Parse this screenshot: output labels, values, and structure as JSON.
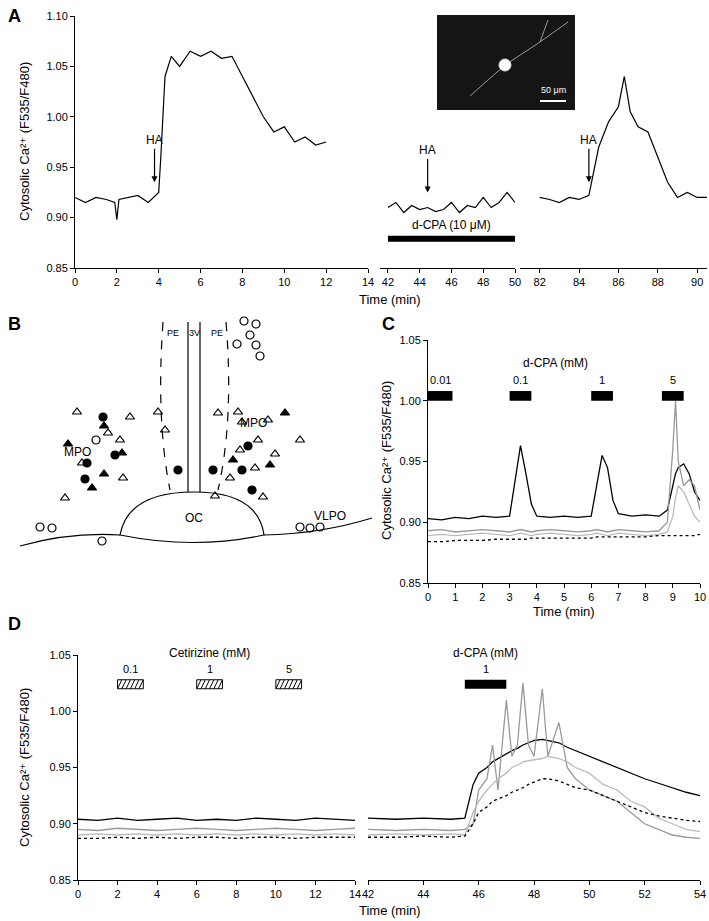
{
  "chart_data": [
    {
      "panel": "A",
      "type": "line",
      "xlabel": "Time (min)",
      "ylabel": "Cytosolic Ca²⁺ (F535/F480)",
      "ylim": [
        0.85,
        1.1
      ],
      "yticks": [
        0.85,
        {
          "value": 0.9,
          "label": "0.90"
        },
        0.95,
        {
          "value": 1,
          "label": "1.00"
        },
        1.05,
        {
          "value": 1.1,
          "label": "1.10"
        }
      ],
      "color": "#000000",
      "segments": [
        {
          "xlim": [
            0,
            14
          ],
          "xticks": [
            0,
            2,
            4,
            6,
            8,
            10,
            12,
            14
          ],
          "x": [
            0,
            0.5,
            1,
            1.5,
            1.9,
            2,
            2.1,
            2.5,
            3,
            3.5,
            4,
            4.1,
            4.3,
            4.6,
            5,
            5.5,
            6,
            6.5,
            7,
            7.5,
            8,
            8.5,
            9,
            9.5,
            10,
            10.5,
            11,
            11.5,
            12
          ],
          "values": [
            0.92,
            0.915,
            0.92,
            0.918,
            0.915,
            0.898,
            0.918,
            0.92,
            0.922,
            0.915,
            0.925,
            0.96,
            1.04,
            1.06,
            1.05,
            1.065,
            1.06,
            1.065,
            1.058,
            1.06,
            1.04,
            1.02,
            1.0,
            0.985,
            0.99,
            0.975,
            0.98,
            0.972,
            0.975
          ]
        },
        {
          "xlim": [
            41.5,
            50
          ],
          "xticks": [
            42,
            44,
            46,
            48,
            50
          ],
          "x": [
            42,
            42.5,
            43,
            43.5,
            44,
            44.5,
            45,
            45.5,
            46,
            46.5,
            47,
            47.5,
            48,
            48.5,
            49,
            49.5,
            50
          ],
          "values": [
            0.91,
            0.915,
            0.905,
            0.912,
            0.908,
            0.91,
            0.906,
            0.908,
            0.915,
            0.905,
            0.912,
            0.91,
            0.92,
            0.91,
            0.915,
            0.925,
            0.915
          ]
        },
        {
          "xlim": [
            81,
            90.5
          ],
          "xticks": [
            82,
            84,
            86,
            88,
            90
          ],
          "x": [
            82,
            82.5,
            83,
            83.5,
            84,
            84.5,
            85,
            85.5,
            86,
            86.3,
            86.6,
            87,
            87.5,
            88,
            88.5,
            89,
            89.5,
            90,
            90.5
          ],
          "values": [
            0.92,
            0.918,
            0.915,
            0.92,
            0.918,
            0.922,
            0.97,
            0.995,
            1.01,
            1.04,
            1.005,
            0.99,
            0.985,
            0.96,
            0.935,
            0.92,
            0.925,
            0.92,
            0.92
          ]
        }
      ],
      "annotations": [
        {
          "text": "HA",
          "x": 3.8,
          "y": 0.935
        },
        {
          "text": "HA",
          "x": 44.5,
          "y": 0.925
        },
        {
          "text": "HA",
          "x": 84.5,
          "y": 0.935
        }
      ],
      "drug_bars": [
        {
          "label": "d-CPA (10 μM)",
          "x": [
            42,
            50
          ]
        }
      ],
      "inset": {
        "label": "50 μm"
      }
    },
    {
      "panel": "B",
      "type": "scatter",
      "xlim": [
        15,
        375
      ],
      "ylim": [
        590,
        310
      ],
      "tick_labels": false,
      "series": [
        {
          "marker": "triangle-open",
          "color": "#000000",
          "x": [
            77,
            108,
            82,
            123,
            65,
            130,
            158,
            165,
            120,
            218,
            238,
            242,
            268,
            258,
            240,
            255,
            275,
            300,
            230,
            263,
            215
          ],
          "y": [
            412,
            433,
            463,
            478,
            498,
            417,
            412,
            430,
            440,
            413,
            412,
            422,
            420,
            440,
            450,
            468,
            454,
            440,
            478,
            497,
            496
          ]
        },
        {
          "marker": "triangle",
          "color": "#000000",
          "x": [
            104,
            68,
            104,
            92,
            122,
            285,
            233,
            270
          ],
          "y": [
            426,
            444,
            474,
            488,
            453,
            413,
            460,
            465
          ]
        },
        {
          "marker": "circle",
          "color": "#000000",
          "x": [
            103,
            115,
            87,
            85,
            178,
            213,
            248,
            242,
            252
          ],
          "y": [
            417,
            455,
            463,
            479,
            470,
            470,
            446,
            470,
            490
          ]
        },
        {
          "marker": "circle-open",
          "color": "#000000",
          "x": [
            244,
            256,
            250,
            237,
            256,
            260,
            40,
            52,
            102,
            300,
            310,
            320,
            96
          ],
          "y": [
            321,
            324,
            335,
            344,
            345,
            356,
            527,
            528,
            541,
            527,
            528,
            527,
            440
          ]
        }
      ],
      "labels": [
        "PE",
        "3V",
        "PE",
        "MPO",
        "MPO",
        "OC",
        "VLPO"
      ]
    },
    {
      "panel": "C",
      "type": "line",
      "xlabel": "Time (min)",
      "ylabel": "Cytosolic Ca²⁺ (F535/F480)",
      "xlim": [
        0,
        10
      ],
      "xticks": [
        0,
        1,
        2,
        3,
        4,
        5,
        6,
        7,
        8,
        9,
        10
      ],
      "ylim": [
        0.85,
        1.05
      ],
      "yticks": [
        0.85,
        {
          "value": 0.9,
          "label": "0.90"
        },
        0.95,
        {
          "value": 1,
          "label": "1.00"
        },
        1.05
      ],
      "x": [
        0,
        0.5,
        1,
        1.5,
        2,
        2.5,
        3,
        3.2,
        3.4,
        3.6,
        3.8,
        4,
        4.5,
        5,
        5.5,
        6,
        6.2,
        6.4,
        6.6,
        6.8,
        7,
        7.5,
        8,
        8.5,
        8.8,
        9,
        9.1,
        9.2,
        9.4,
        9.6,
        9.8,
        10
      ],
      "series": [
        {
          "color": "#000000",
          "line_style": "solid",
          "values": [
            0.903,
            0.902,
            0.904,
            0.903,
            0.905,
            0.904,
            0.905,
            0.935,
            0.963,
            0.94,
            0.915,
            0.905,
            0.904,
            0.905,
            0.904,
            0.905,
            0.93,
            0.955,
            0.945,
            0.918,
            0.907,
            0.905,
            0.906,
            0.905,
            0.91,
            0.93,
            0.94,
            0.945,
            0.948,
            0.94,
            0.925,
            0.918
          ]
        },
        {
          "color": "#999999",
          "line_style": "solid",
          "values": [
            0.893,
            0.894,
            0.892,
            0.893,
            0.894,
            0.893,
            0.892,
            0.893,
            0.894,
            0.893,
            0.892,
            0.893,
            0.894,
            0.893,
            0.892,
            0.893,
            0.894,
            0.893,
            0.892,
            0.893,
            0.894,
            0.893,
            0.892,
            0.893,
            0.9,
            0.96,
            1.0,
            0.95,
            0.93,
            0.935,
            0.93,
            0.91
          ]
        },
        {
          "color": "#bbbbbb",
          "line_style": "solid",
          "values": [
            0.889,
            0.89,
            0.889,
            0.89,
            0.891,
            0.89,
            0.889,
            0.89,
            0.891,
            0.89,
            0.889,
            0.89,
            0.891,
            0.89,
            0.889,
            0.89,
            0.891,
            0.89,
            0.889,
            0.89,
            0.891,
            0.89,
            0.889,
            0.89,
            0.892,
            0.905,
            0.92,
            0.93,
            0.925,
            0.915,
            0.905,
            0.9
          ]
        },
        {
          "color": "#000000",
          "line_style": "dotted",
          "values": [
            0.884,
            0.884,
            0.885,
            0.885,
            0.885,
            0.886,
            0.886,
            0.886,
            0.886,
            0.886,
            0.887,
            0.887,
            0.887,
            0.887,
            0.887,
            0.887,
            0.888,
            0.888,
            0.888,
            0.888,
            0.888,
            0.888,
            0.888,
            0.889,
            0.889,
            0.889,
            0.889,
            0.889,
            0.889,
            0.889,
            0.889,
            0.89
          ]
        }
      ],
      "drug": {
        "title": "d-CPA (mM)",
        "marker": "solid",
        "bars": [
          {
            "label": "0.01",
            "x": [
              0,
              0.9
            ]
          },
          {
            "label": "0.1",
            "x": [
              3,
              3.8
            ]
          },
          {
            "label": "1",
            "x": [
              6,
              6.8
            ]
          },
          {
            "label": "5",
            "x": [
              8.6,
              9.4
            ]
          }
        ]
      }
    },
    {
      "panel": "D",
      "type": "line",
      "xlabel": "Time (min)",
      "ylabel": "Cytosolic Ca²⁺ (F535/F480)",
      "ylim": [
        0.85,
        1.05
      ],
      "yticks": [
        0.85,
        {
          "value": 0.9,
          "label": "0.90"
        },
        0.95,
        {
          "value": 1,
          "label": "1.00"
        },
        1.05
      ],
      "subplots": [
        {
          "xlim": [
            0,
            14
          ],
          "xticks": [
            0,
            2,
            4,
            6,
            8,
            10,
            12,
            14
          ],
          "x": [
            0,
            1,
            2,
            3,
            4,
            5,
            6,
            7,
            8,
            9,
            10,
            11,
            12,
            13,
            14
          ],
          "series": [
            {
              "color": "#000000",
              "line_style": "solid",
              "values": [
                0.904,
                0.903,
                0.905,
                0.903,
                0.904,
                0.905,
                0.903,
                0.904,
                0.903,
                0.905,
                0.904,
                0.903,
                0.905,
                0.904,
                0.903
              ]
            },
            {
              "color": "#999999",
              "line_style": "solid",
              "values": [
                0.895,
                0.894,
                0.896,
                0.895,
                0.894,
                0.895,
                0.896,
                0.895,
                0.894,
                0.895,
                0.896,
                0.895,
                0.894,
                0.895,
                0.896
              ]
            },
            {
              "color": "#bbbbbb",
              "line_style": "solid",
              "values": [
                0.89,
                0.891,
                0.89,
                0.891,
                0.89,
                0.891,
                0.89,
                0.891,
                0.89,
                0.891,
                0.89,
                0.891,
                0.89,
                0.891,
                0.89
              ]
            },
            {
              "color": "#000000",
              "line_style": "dotted",
              "values": [
                0.887,
                0.887,
                0.888,
                0.887,
                0.888,
                0.887,
                0.888,
                0.888,
                0.887,
                0.888,
                0.888,
                0.887,
                0.888,
                0.888,
                0.888
              ]
            }
          ],
          "drug": {
            "title": "Cetirizine (mM)",
            "marker": "hatched",
            "bars": [
              {
                "label": "0.1",
                "x": [
                  2,
                  3.3
                ]
              },
              {
                "label": "1",
                "x": [
                  6,
                  7.3
                ]
              },
              {
                "label": "5",
                "x": [
                  10,
                  11.3
                ]
              }
            ]
          }
        },
        {
          "xlim": [
            42,
            54
          ],
          "xticks": [
            42,
            44,
            46,
            48,
            50,
            52,
            54
          ],
          "x": [
            42,
            43,
            44,
            45,
            45.5,
            45.8,
            46,
            46.3,
            46.5,
            46.7,
            47,
            47.2,
            47.4,
            47.6,
            47.8,
            48,
            48.3,
            48.5,
            48.9,
            49.2,
            49.5,
            50,
            50.5,
            51,
            51.5,
            52,
            52.5,
            53,
            53.5,
            54
          ],
          "series": [
            {
              "color": "#000000",
              "line_style": "solid",
              "values": [
                0.905,
                0.904,
                0.905,
                0.904,
                0.905,
                0.935,
                0.945,
                0.95,
                0.955,
                0.958,
                0.962,
                0.965,
                0.967,
                0.97,
                0.972,
                0.974,
                0.975,
                0.974,
                0.972,
                0.968,
                0.965,
                0.96,
                0.955,
                0.95,
                0.945,
                0.94,
                0.936,
                0.932,
                0.928,
                0.925
              ]
            },
            {
              "color": "#999999",
              "line_style": "solid",
              "values": [
                0.895,
                0.894,
                0.895,
                0.894,
                0.895,
                0.9,
                0.93,
                0.94,
                0.97,
                0.93,
                1.01,
                0.96,
                0.97,
                1.025,
                0.97,
                0.96,
                1.02,
                0.96,
                0.99,
                0.95,
                0.94,
                0.93,
                0.925,
                0.92,
                0.91,
                0.9,
                0.895,
                0.89,
                0.888,
                0.887
              ]
            },
            {
              "color": "#bbbbbb",
              "line_style": "solid",
              "values": [
                0.89,
                0.891,
                0.89,
                0.891,
                0.89,
                0.91,
                0.92,
                0.93,
                0.935,
                0.94,
                0.945,
                0.95,
                0.952,
                0.955,
                0.956,
                0.957,
                0.958,
                0.96,
                0.958,
                0.955,
                0.95,
                0.945,
                0.935,
                0.93,
                0.92,
                0.915,
                0.905,
                0.9,
                0.895,
                0.893
              ]
            },
            {
              "color": "#000000",
              "line_style": "dotted",
              "values": [
                0.888,
                0.888,
                0.889,
                0.888,
                0.889,
                0.9,
                0.91,
                0.915,
                0.92,
                0.922,
                0.925,
                0.928,
                0.93,
                0.932,
                0.935,
                0.937,
                0.94,
                0.94,
                0.938,
                0.935,
                0.932,
                0.93,
                0.925,
                0.92,
                0.915,
                0.91,
                0.907,
                0.905,
                0.903,
                0.902
              ]
            }
          ],
          "drug": {
            "title": "d-CPA (mM)",
            "marker": "solid",
            "bars": [
              {
                "label": "1",
                "x": [
                  45.5,
                  47
                ]
              }
            ]
          }
        }
      ]
    }
  ]
}
